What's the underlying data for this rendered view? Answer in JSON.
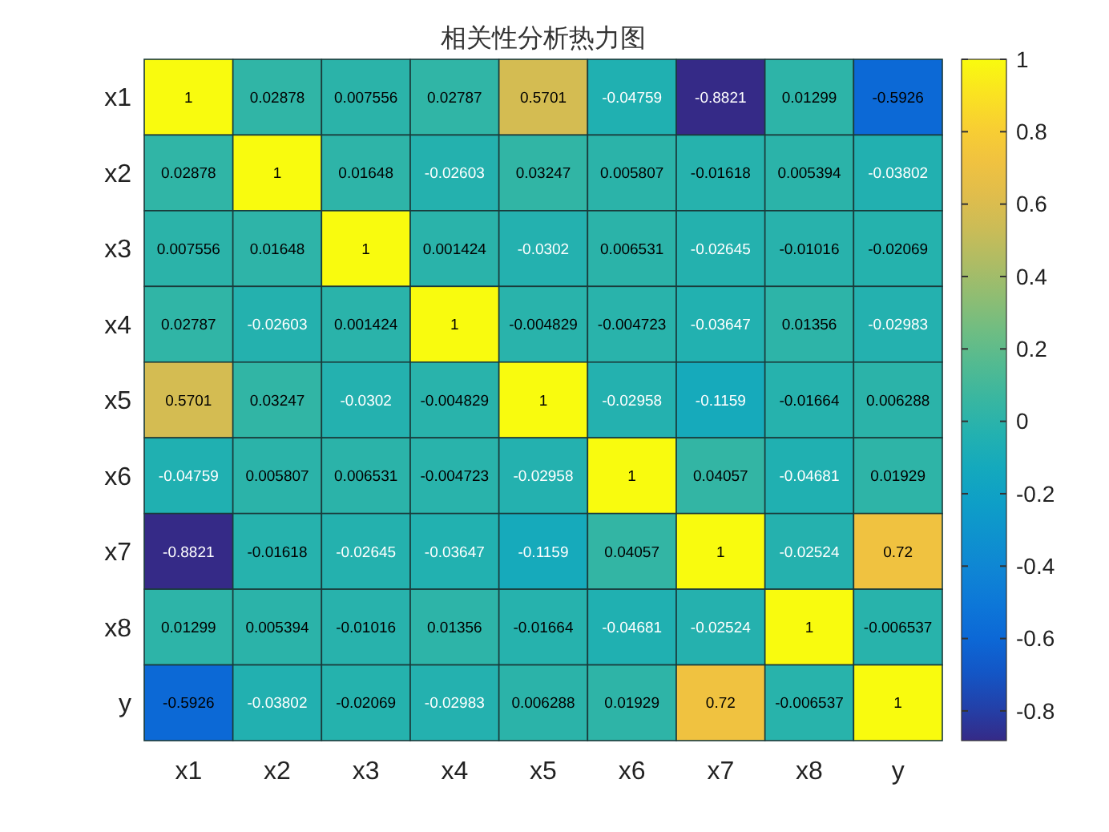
{
  "chart_data": {
    "type": "heatmap",
    "title": "相关性分析热力图",
    "categories": [
      "x1",
      "x2",
      "x3",
      "x4",
      "x5",
      "x6",
      "x7",
      "x8",
      "y"
    ],
    "y_categories": [
      "x1",
      "x2",
      "x3",
      "x4",
      "x5",
      "x6",
      "x7",
      "x8",
      "y"
    ],
    "cells": [
      [
        1,
        0.02878,
        0.007556,
        0.02787,
        0.5701,
        -0.04759,
        -0.8821,
        0.01299,
        -0.5926
      ],
      [
        0.02878,
        1,
        0.01648,
        -0.02603,
        0.03247,
        0.005807,
        -0.01618,
        0.005394,
        -0.03802
      ],
      [
        0.007556,
        0.01648,
        1,
        0.001424,
        -0.0302,
        0.006531,
        -0.02645,
        -0.01016,
        -0.02069
      ],
      [
        0.02787,
        -0.02603,
        0.001424,
        1,
        -0.004829,
        -0.004723,
        -0.03647,
        0.01356,
        -0.02983
      ],
      [
        0.5701,
        0.03247,
        -0.0302,
        -0.004829,
        1,
        -0.02958,
        -0.1159,
        -0.01664,
        0.006288
      ],
      [
        -0.04759,
        0.005807,
        0.006531,
        -0.004723,
        -0.02958,
        1,
        0.04057,
        -0.04681,
        0.01929
      ],
      [
        -0.8821,
        -0.01618,
        -0.02645,
        -0.03647,
        -0.1159,
        0.04057,
        1,
        -0.02524,
        0.72
      ],
      [
        0.01299,
        0.005394,
        -0.01016,
        0.01356,
        -0.01664,
        -0.04681,
        -0.02524,
        1,
        -0.006537
      ],
      [
        -0.5926,
        -0.03802,
        -0.02069,
        -0.02983,
        0.006288,
        0.01929,
        0.72,
        -0.006537,
        1
      ]
    ],
    "clim": [
      -0.8821,
      1
    ],
    "cticks": [
      -0.8,
      -0.6,
      -0.4,
      -0.2,
      0,
      0.2,
      0.4,
      0.6,
      0.8,
      1
    ],
    "data_labels": true
  }
}
